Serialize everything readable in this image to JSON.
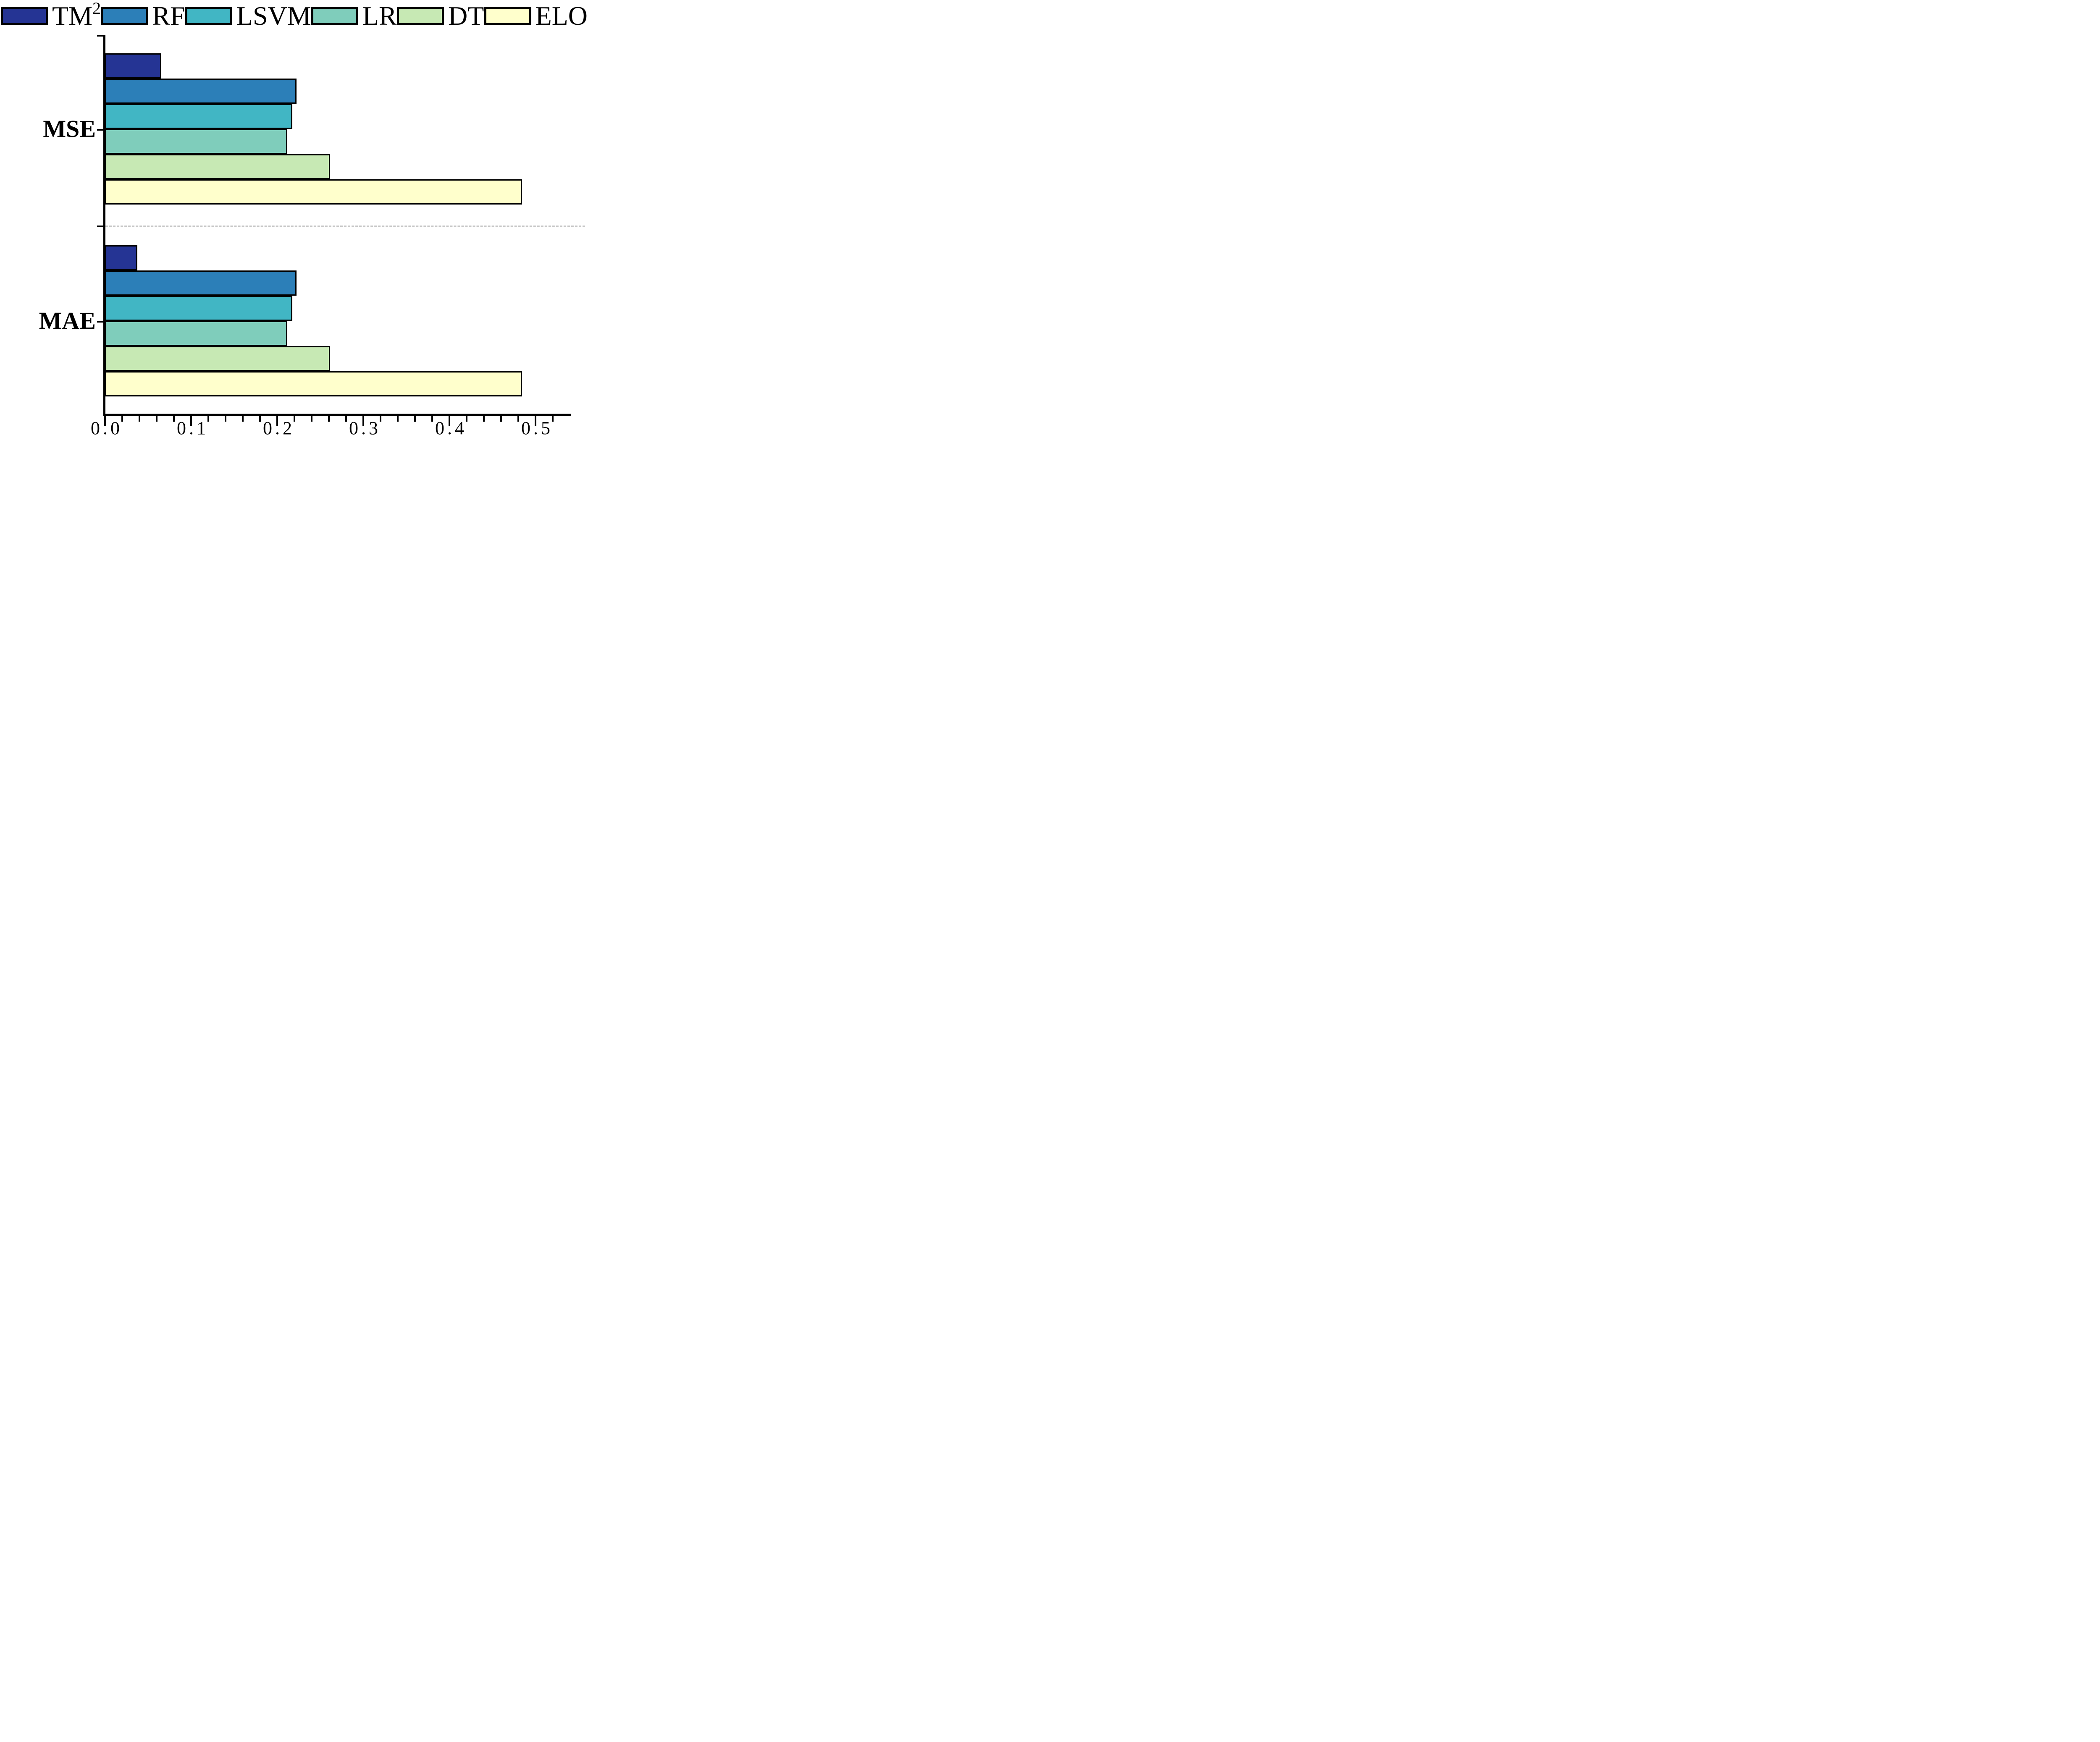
{
  "figure": {
    "background": "#ffffff"
  },
  "legend": {
    "position": "top",
    "items": [
      {
        "label": "TM",
        "sup": "2"
      },
      {
        "label": "RF",
        "sup": ""
      },
      {
        "label": "LSVM",
        "sup": ""
      },
      {
        "label": "LR",
        "sup": ""
      },
      {
        "label": "DT",
        "sup": ""
      },
      {
        "label": "ELO",
        "sup": ""
      }
    ]
  },
  "axes": {
    "y_group_labels": [
      "MSE",
      "MAE"
    ],
    "x_tick_labels": [
      "0.0",
      "0.1",
      "0.2",
      "0.3",
      "0.4",
      "0.5"
    ]
  },
  "chart_data": {
    "type": "bar",
    "orientation": "horizontal",
    "title": "",
    "xlabel": "",
    "ylabel": "",
    "categories": [
      "MSE",
      "MAE"
    ],
    "series": [
      {
        "name": "TM2",
        "display": "TM²",
        "color": "#253494",
        "values": [
          0.066,
          0.038
        ]
      },
      {
        "name": "RF",
        "display": "RF",
        "color": "#2c7fb8",
        "values": [
          0.223,
          0.223
        ]
      },
      {
        "name": "LSVM",
        "display": "LSVM",
        "color": "#41b6c4",
        "values": [
          0.218,
          0.218
        ]
      },
      {
        "name": "LR",
        "display": "LR",
        "color": "#7fcdbb",
        "values": [
          0.212,
          0.212
        ]
      },
      {
        "name": "DT",
        "display": "DT",
        "color": "#c7e9b4",
        "values": [
          0.262,
          0.262
        ]
      },
      {
        "name": "ELO",
        "display": "ELO",
        "color": "#ffffcc",
        "values": [
          0.485,
          0.485
        ]
      }
    ],
    "xlim": [
      0,
      0.54
    ],
    "x_major_ticks": [
      0.0,
      0.1,
      0.2,
      0.3,
      0.4,
      0.5
    ],
    "x_minor_tick_step": 0.02,
    "bar_edge_color": "#000000",
    "separator_line": {
      "style": "dashed",
      "color": "#c9c9c9",
      "between": [
        "MSE",
        "MAE"
      ]
    },
    "grid": false,
    "legend_position": "top"
  }
}
